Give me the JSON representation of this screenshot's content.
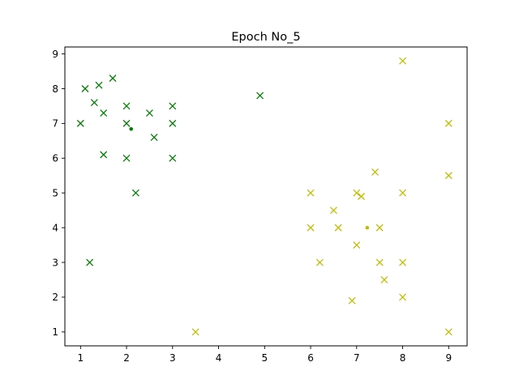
{
  "chart_data": {
    "type": "scatter",
    "title": "Epoch No_5",
    "xlabel": "",
    "ylabel": "",
    "xlim": [
      0.66,
      9.4
    ],
    "ylim": [
      0.6,
      9.2
    ],
    "xticks": [
      1,
      2,
      3,
      4,
      5,
      6,
      7,
      8,
      9
    ],
    "yticks": [
      1,
      2,
      3,
      4,
      5,
      6,
      7,
      8,
      9
    ],
    "grid": false,
    "legend": false,
    "series": [
      {
        "color": "#008000",
        "marker": "x",
        "points": [
          [
            1.0,
            7.0
          ],
          [
            1.1,
            8.0
          ],
          [
            1.3,
            7.6
          ],
          [
            1.4,
            8.1
          ],
          [
            1.5,
            7.3
          ],
          [
            1.7,
            8.3
          ],
          [
            1.5,
            6.1
          ],
          [
            1.2,
            3.0
          ],
          [
            2.0,
            7.5
          ],
          [
            2.0,
            7.0
          ],
          [
            2.0,
            6.0
          ],
          [
            2.2,
            5.0
          ],
          [
            2.5,
            7.3
          ],
          [
            2.6,
            6.6
          ],
          [
            3.0,
            7.5
          ],
          [
            3.0,
            7.0
          ],
          [
            3.0,
            6.0
          ],
          [
            4.9,
            7.8
          ]
        ],
        "centroid": [
          2.1,
          6.84
        ]
      },
      {
        "color": "#bfbf00",
        "marker": "x",
        "points": [
          [
            3.5,
            1.0
          ],
          [
            6.0,
            5.0
          ],
          [
            6.0,
            4.0
          ],
          [
            6.2,
            3.0
          ],
          [
            6.5,
            4.5
          ],
          [
            6.6,
            4.0
          ],
          [
            7.0,
            5.0
          ],
          [
            7.1,
            4.9
          ],
          [
            7.0,
            3.5
          ],
          [
            6.9,
            1.9
          ],
          [
            7.4,
            5.6
          ],
          [
            7.5,
            4.0
          ],
          [
            7.5,
            3.0
          ],
          [
            7.6,
            2.5
          ],
          [
            8.0,
            8.8
          ],
          [
            8.0,
            5.0
          ],
          [
            8.0,
            3.0
          ],
          [
            8.0,
            2.0
          ],
          [
            9.0,
            7.0
          ],
          [
            9.0,
            5.5
          ],
          [
            9.0,
            1.0
          ]
        ],
        "centroid": [
          7.23,
          4.0
        ]
      }
    ]
  }
}
